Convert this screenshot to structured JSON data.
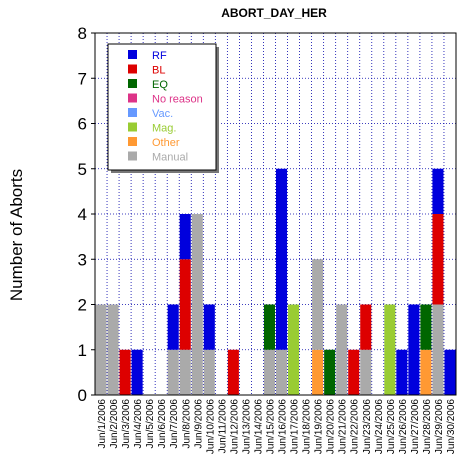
{
  "chart_data": {
    "type": "bar",
    "stacked": true,
    "title": "ABORT_DAY_HER",
    "xlabel": "",
    "ylabel": "Number of Aborts",
    "ylim": [
      0,
      8
    ],
    "yticks": [
      "0",
      "1",
      "2",
      "3",
      "4",
      "5",
      "6",
      "7",
      "8"
    ],
    "grid": true,
    "legend_position": "top-left",
    "categories": [
      "Jun/1/2006",
      "Jun/2/2006",
      "Jun/3/2006",
      "Jun/4/2006",
      "Jun/5/2006",
      "Jun/6/2006",
      "Jun/7/2006",
      "Jun/8/2006",
      "Jun/9/2006",
      "Jun/10/2006",
      "Jun/11/2006",
      "Jun/12/2006",
      "Jun/13/2006",
      "Jun/14/2006",
      "Jun/15/2006",
      "Jun/16/2006",
      "Jun/17/2006",
      "Jun/18/2006",
      "Jun/19/2006",
      "Jun/20/2006",
      "Jun/21/2006",
      "Jun/22/2006",
      "Jun/23/2006",
      "Jun/24/2006",
      "Jun/25/2006",
      "Jun/26/2006",
      "Jun/27/2006",
      "Jun/28/2006",
      "Jun/29/2006",
      "Jun/30/2006"
    ],
    "series": [
      {
        "name": "RF",
        "color": "#0000dd",
        "values": [
          0,
          0,
          0,
          1,
          0,
          0,
          1,
          1,
          0,
          1,
          0,
          0,
          0,
          0,
          0,
          4,
          0,
          0,
          0,
          0,
          0,
          0,
          0,
          0,
          0,
          1,
          2,
          0,
          1,
          1
        ]
      },
      {
        "name": "BL",
        "color": "#dd0000",
        "values": [
          0,
          0,
          1,
          0,
          0,
          0,
          0,
          2,
          0,
          0,
          0,
          1,
          0,
          0,
          0,
          0,
          0,
          0,
          0,
          0,
          0,
          1,
          1,
          0,
          0,
          0,
          0,
          0,
          2,
          0
        ]
      },
      {
        "name": "EQ",
        "color": "#006600",
        "values": [
          0,
          0,
          0,
          0,
          0,
          0,
          0,
          0,
          0,
          0,
          0,
          0,
          0,
          0,
          1,
          0,
          0,
          0,
          0,
          1,
          0,
          0,
          0,
          0,
          0,
          0,
          0,
          1,
          0,
          0
        ]
      },
      {
        "name": "No reason",
        "color": "#dd3388",
        "values": [
          0,
          0,
          0,
          0,
          0,
          0,
          0,
          0,
          0,
          0,
          0,
          0,
          0,
          0,
          0,
          0,
          0,
          0,
          0,
          0,
          0,
          0,
          0,
          0,
          0,
          0,
          0,
          0,
          0,
          0
        ]
      },
      {
        "name": "Vac.",
        "color": "#6699ff",
        "values": [
          0,
          0,
          0,
          0,
          0,
          0,
          0,
          0,
          0,
          0,
          0,
          0,
          0,
          0,
          0,
          0,
          0,
          0,
          0,
          0,
          0,
          0,
          0,
          0,
          0,
          0,
          0,
          0,
          0,
          0
        ]
      },
      {
        "name": "Mag.",
        "color": "#99cc33",
        "values": [
          0,
          0,
          0,
          0,
          0,
          0,
          0,
          0,
          0,
          0,
          0,
          0,
          0,
          0,
          0,
          0,
          2,
          0,
          0,
          0,
          0,
          0,
          0,
          0,
          2,
          0,
          0,
          0,
          0,
          0
        ]
      },
      {
        "name": "Other",
        "color": "#ff9933",
        "values": [
          0,
          0,
          0,
          0,
          0,
          0,
          0,
          0,
          0,
          0,
          0,
          0,
          0,
          0,
          0,
          0,
          0,
          0,
          1,
          0,
          0,
          0,
          0,
          0,
          0,
          0,
          0,
          1,
          0,
          0
        ]
      },
      {
        "name": "Manual",
        "color": "#aaaaaa",
        "values": [
          2,
          2,
          0,
          0,
          0,
          0,
          1,
          1,
          4,
          1,
          0,
          0,
          0,
          0,
          1,
          1,
          0,
          0,
          2,
          0,
          2,
          0,
          1,
          0,
          0,
          0,
          0,
          0,
          2,
          0
        ]
      }
    ]
  }
}
